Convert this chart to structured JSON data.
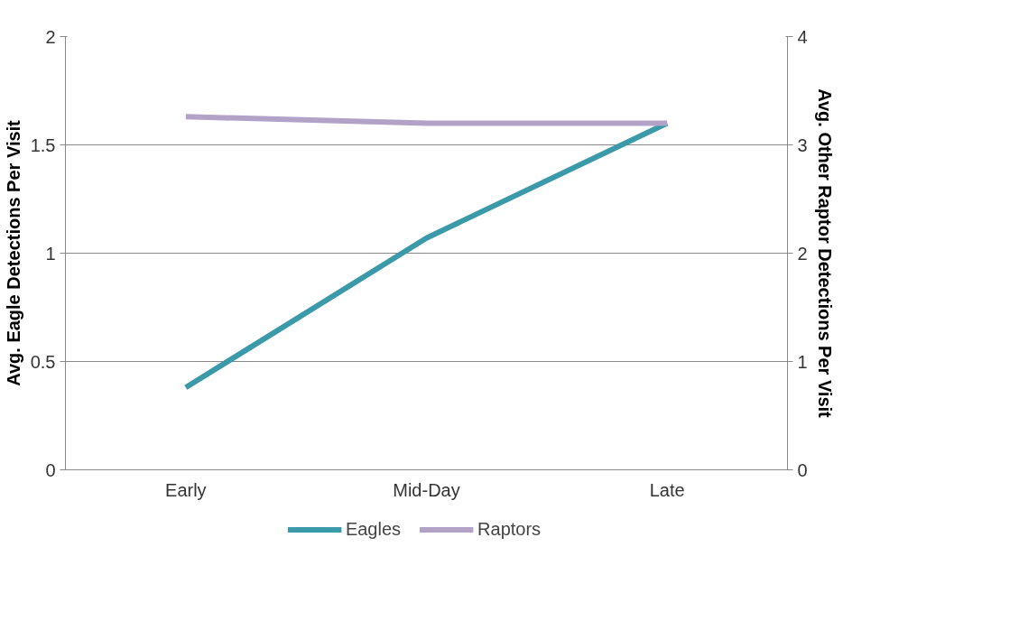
{
  "chart_data": {
    "type": "line",
    "categories": [
      "Early",
      "Mid-Day",
      "Late"
    ],
    "ylabel": "Avg. Eagle Detections Per Visit",
    "y2label": "Avg. Other Raptor Detections Per Visit",
    "ylim": [
      0,
      2
    ],
    "yticks": [
      0,
      0.5,
      1,
      1.5,
      2
    ],
    "y2lim": [
      0,
      4
    ],
    "y2ticks": [
      0,
      1,
      2,
      3,
      4
    ],
    "grid": "y",
    "legend": "bottom",
    "marker": "none",
    "line_style": "solid",
    "series": [
      {
        "name": "Eagles",
        "color": "#3a9aaa",
        "values": [
          0.38,
          1.07,
          1.6
        ]
      },
      {
        "name": "Raptors",
        "color": "#b3a2c7",
        "values": [
          3.26,
          3.2,
          3.2
        ],
        "axis": "y2"
      }
    ]
  }
}
